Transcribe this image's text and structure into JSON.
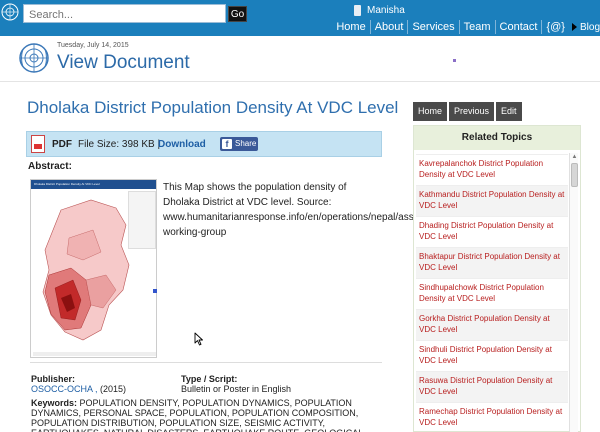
{
  "search": {
    "placeholder": "Search...",
    "go_label": "Go"
  },
  "user": {
    "name": "Manisha"
  },
  "topnav": {
    "items": [
      "Home",
      "About",
      "Services",
      "Team",
      "Contact",
      "{@}"
    ],
    "blog_label": "Blog"
  },
  "header": {
    "date": "Tuesday, July 14, 2015",
    "title": "View Document"
  },
  "document": {
    "title": "Dholaka District Population Density At VDC Level",
    "pdf_label": "PDF",
    "file_size": "File Size: 398 KB  |",
    "download_label": "Download",
    "share_label": "Share",
    "abstract_label": "Abstract:",
    "map_title": "Dholaka District Population Density At VDC Level",
    "abstract_text": "This Map shows the population density of Dholaka District at VDC level. Source: www.humanitarianresponse.info/en/operations/nepal/assessment-working-group",
    "publisher_label": "Publisher:",
    "publisher_name": "OSOCC-OCHA ,",
    "publisher_year": "(2015)",
    "type_label": "Type / Script:",
    "type_value": "Bulletin or Poster in English",
    "keywords_label": "Keywords:",
    "keywords_text": "POPULATION DENSITY, POPULATION DYNAMICS, POPULATION DYNAMICS, PERSONAL SPACE, POPULATION, POPULATION COMPOSITION, POPULATION DISTRIBUTION, POPULATION SIZE, SEISMIC ACTIVITY, EARTHQUAKES, NATURAL DISASTERS, EARTHQUAKE ROUTE, GEOLOGICAL"
  },
  "side_buttons": [
    "Home",
    "Previous",
    "Edit"
  ],
  "related": {
    "heading": "Related Topics",
    "items": [
      "Kavrepalanchok District Population Density at VDC Level",
      "Kathmandu District Population Density at VDC Level",
      "Dhading District Population Density at VDC Level",
      "Bhaktapur District Population Density at VDC Level",
      "Sindhupalchowk District Population Density at VDC Level",
      "Gorkha District Population Density at VDC Level",
      "Sindhuli District Population Density at VDC Level",
      "Rasuwa District Population Density at VDC Level",
      "Ramechap District Population Density at VDC Level"
    ]
  },
  "colors": {
    "topbar": "#1b7fbc",
    "title_blue": "#2f6fae",
    "related_link": "#b82020",
    "pdf_bar": "#c5e3f3"
  }
}
